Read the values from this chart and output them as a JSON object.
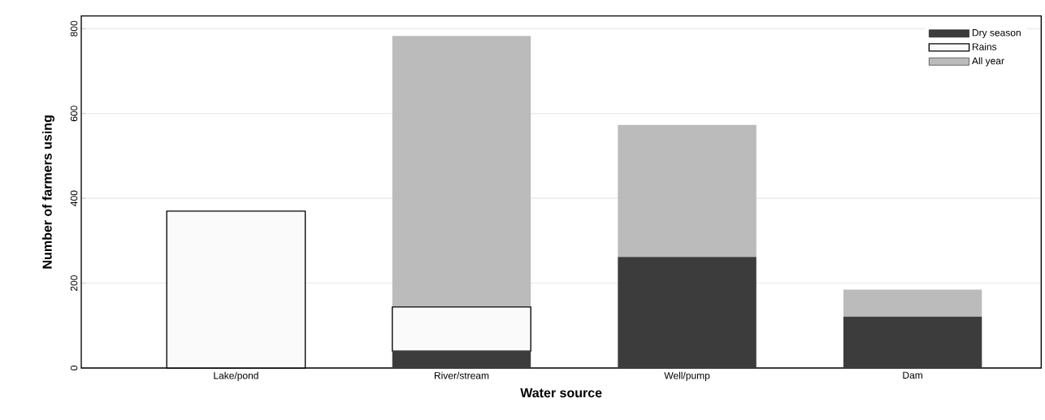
{
  "chart_data": {
    "type": "bar",
    "stacked": true,
    "xlabel": "Water source",
    "ylabel": "Number of farmers using",
    "categories": [
      "Lake/pond",
      "River/stream",
      "Well/pump",
      "Dam"
    ],
    "series": [
      {
        "name": "Dry season",
        "color": "#3c3c3c",
        "values": [
          0,
          40,
          262,
          121
        ]
      },
      {
        "name": "Rains",
        "color": "#fafafa",
        "values": [
          370,
          104,
          0,
          0
        ]
      },
      {
        "name": "All year",
        "color": "#bbbbbb",
        "values": [
          0,
          639,
          311,
          64
        ]
      }
    ],
    "ylim": [
      0,
      830
    ],
    "yticks": [
      0,
      200,
      400,
      600,
      800
    ],
    "grid": "y",
    "legend": "top right"
  }
}
